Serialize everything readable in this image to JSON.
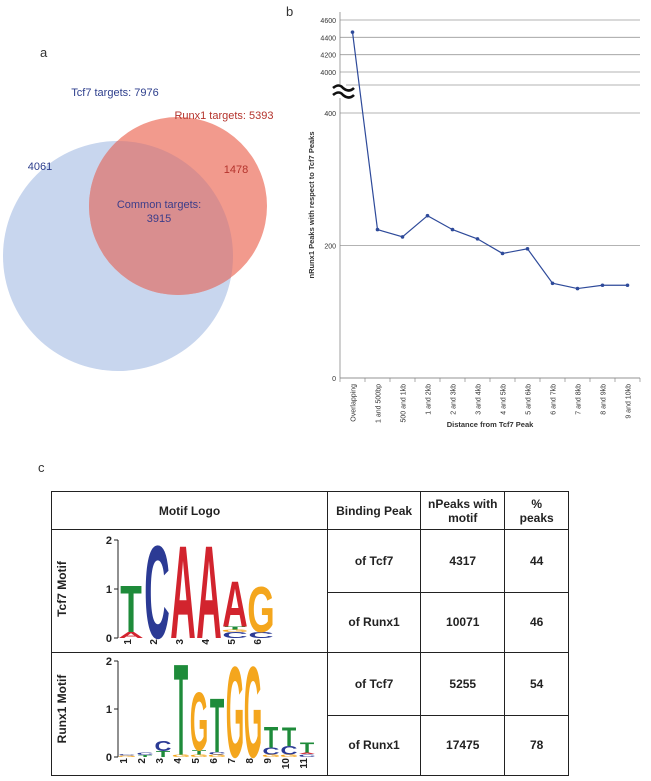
{
  "panels": {
    "a": "a",
    "b": "b",
    "c": "c"
  },
  "venn": {
    "tcf7_label": "Tcf7 targets: 7976",
    "runx1_label": "Runx1 targets: 5393",
    "tcf7_only": "4061",
    "runx1_only": "1478",
    "common_line1": "Common targets:",
    "common_line2": "3915",
    "colors": {
      "tcf7": "#c8d6ee",
      "runx1": "#f29a8d",
      "overlap": "#d98e8f",
      "tcf7_text": "#2d3e8c",
      "runx1_text": "#b4332c"
    }
  },
  "chart_data": {
    "type": "line",
    "xlabel": "Distance from Tcf7 Peak",
    "ylabel": "nRunx1 Peaks with respect to Tcf7 Peaks",
    "categories": [
      "Overlapping",
      "1 and 500bp",
      "500 and 1kb",
      "1 and 2kb",
      "2 and 3kb",
      "3 and 4kb",
      "4 and 5kb",
      "5 and 6kb",
      "6 and 7kb",
      "7 and 8kb",
      "8 and 9kb",
      "9 and 10kb"
    ],
    "values": [
      4460,
      224,
      213,
      245,
      224,
      210,
      188,
      195,
      143,
      135,
      140,
      140
    ],
    "axis_break": true,
    "lower_ylim": [
      0,
      400
    ],
    "lower_ticks": [
      "0",
      "200",
      "400"
    ],
    "upper_ylim": [
      4000,
      4600
    ],
    "upper_ticks": [
      "4000",
      "4200",
      "4400",
      "4600"
    ],
    "line_color": "#2e4a9a"
  },
  "table": {
    "headers": [
      "Motif Logo",
      "Binding Peak",
      "nPeaks with motif",
      "% peaks"
    ],
    "motifs": [
      {
        "name": "Tcf7 Motif",
        "yticks": [
          "2",
          "1",
          "0"
        ],
        "positions": [
          "1",
          "2",
          "3",
          "4",
          "5",
          "6"
        ]
      },
      {
        "name": "Runx1 Motif",
        "yticks": [
          "2",
          "1",
          "0"
        ],
        "positions": [
          "1",
          "2",
          "3",
          "4",
          "5",
          "6",
          "7",
          "8",
          "9",
          "10",
          "11"
        ]
      }
    ],
    "rows": [
      {
        "peak": "of Tcf7",
        "n": "4317",
        "pct": "44"
      },
      {
        "peak": "of Runx1",
        "n": "10071",
        "pct": "46"
      },
      {
        "peak": "of Tcf7",
        "n": "5255",
        "pct": "54"
      },
      {
        "peak": "of Runx1",
        "n": "17475",
        "pct": "78"
      }
    ]
  },
  "logo_colors": {
    "A": "#d2242e",
    "C": "#2b3a94",
    "G": "#f4a61d",
    "T": "#1e8b3a"
  }
}
